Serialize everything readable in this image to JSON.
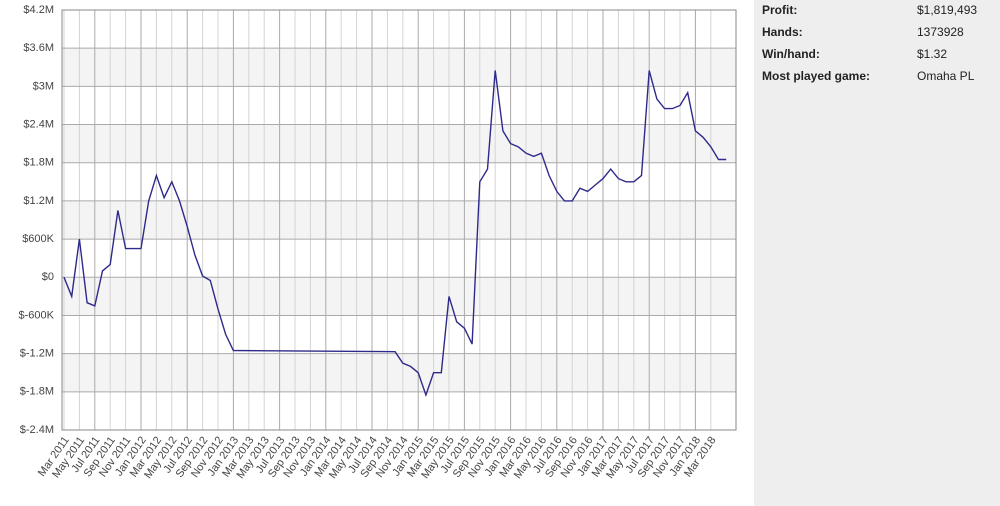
{
  "chart_data": {
    "type": "line",
    "categories": [
      "Mar 2011",
      "May 2011",
      "Jul 2011",
      "Sep 2011",
      "Nov 2011",
      "Jan 2012",
      "Mar 2012",
      "May 2012",
      "Jul 2012",
      "Sep 2012",
      "Nov 2012",
      "Jan 2013",
      "Mar 2013",
      "May 2013",
      "Jul 2013",
      "Sep 2013",
      "Nov 2013",
      "Jan 2014",
      "Mar 2014",
      "May 2014",
      "Jul 2014",
      "Sep 2014",
      "Nov 2014",
      "Jan 2015",
      "Mar 2015",
      "May 2015",
      "Jul 2015",
      "Sep 2015",
      "Nov 2015",
      "Jan 2016",
      "Mar 2016",
      "May 2016",
      "Jul 2016",
      "Sep 2016",
      "Nov 2016",
      "Jan 2017",
      "Mar 2017",
      "May 2017",
      "Jul 2017",
      "Sep 2017",
      "Nov 2017",
      "Jan 2018",
      "Mar 2018"
    ],
    "x": [
      "Mar 2011",
      "Apr 2011",
      "May 2011",
      "Jun 2011",
      "Jul 2011",
      "Aug 2011",
      "Sep 2011",
      "Oct 2011",
      "Nov 2011",
      "Dec 2011",
      "Jan 2012",
      "Feb 2012",
      "Mar 2012",
      "Apr 2012",
      "May 2012",
      "Jun 2012",
      "Jul 2012",
      "Aug 2012",
      "Sep 2012",
      "Oct 2012",
      "Nov 2012",
      "Dec 2012",
      "Jan 2013",
      "Oct 2014",
      "Nov 2014",
      "Dec 2014",
      "Jan 2015",
      "Feb 2015",
      "Mar 2015",
      "Apr 2015",
      "May 2015",
      "Jun 2015",
      "Jul 2015",
      "Aug 2015",
      "Sep 2015",
      "Oct 2015",
      "Nov 2015",
      "Dec 2015",
      "Jan 2016",
      "Feb 2016",
      "Mar 2016",
      "Apr 2016",
      "May 2016",
      "Jun 2016",
      "Jul 2016",
      "Aug 2016",
      "Sep 2016",
      "Oct 2016",
      "Nov 2016",
      "Dec 2016",
      "Jan 2017",
      "Feb 2017",
      "Mar 2017",
      "Apr 2017",
      "May 2017",
      "Jun 2017",
      "Jul 2017",
      "Aug 2017",
      "Sep 2017",
      "Oct 2017",
      "Nov 2017",
      "Dec 2017",
      "Jan 2018",
      "Feb 2018",
      "Mar 2018",
      "Apr 2018",
      "May 2018"
    ],
    "series": [
      {
        "color": "#2e2a8a",
        "values": [
          0,
          -300000,
          600000,
          -400000,
          -450000,
          100000,
          200000,
          1050000,
          450000,
          450000,
          450000,
          1200000,
          1600000,
          1250000,
          1500000,
          1200000,
          800000,
          350000,
          20000,
          -50000,
          -500000,
          -900000,
          -1150000,
          -1170000,
          -1350000,
          -1400000,
          -1500000,
          -1850000,
          -1500000,
          -1500000,
          -300000,
          -700000,
          -800000,
          -1050000,
          1500000,
          1700000,
          3250000,
          2300000,
          2100000,
          2050000,
          1950000,
          1900000,
          1950000,
          1600000,
          1350000,
          1200000,
          1200000,
          1400000,
          1350000,
          1450000,
          1550000,
          1700000,
          1550000,
          1500000,
          1500000,
          1600000,
          3250000,
          2800000,
          2650000,
          2650000,
          2700000,
          2900000,
          2300000,
          2200000,
          2050000,
          1850000,
          1850000
        ]
      }
    ],
    "ylim": [
      -2400000,
      4200000
    ],
    "yticks": [
      {
        "value": 4200000,
        "label": "$4.2M"
      },
      {
        "value": 3600000,
        "label": "$3.6M"
      },
      {
        "value": 3000000,
        "label": "$3M"
      },
      {
        "value": 2400000,
        "label": "$2.4M"
      },
      {
        "value": 1800000,
        "label": "$1.8M"
      },
      {
        "value": 1200000,
        "label": "$1.2M"
      },
      {
        "value": 600000,
        "label": "$600K"
      },
      {
        "value": 0,
        "label": "$0"
      },
      {
        "value": -600000,
        "label": "$-600K"
      },
      {
        "value": -1200000,
        "label": "$-1.2M"
      },
      {
        "value": -1800000,
        "label": "$-1.8M"
      },
      {
        "value": -2400000,
        "label": "$-2.4M"
      }
    ],
    "grid": true
  },
  "stats": [
    {
      "label": "Profit:",
      "value": "$1,819,493"
    },
    {
      "label": "Hands:",
      "value": "1373928"
    },
    {
      "label": "Win/hand:",
      "value": "$1.32"
    },
    {
      "label": "Most played game:",
      "value": "Omaha PL"
    }
  ]
}
